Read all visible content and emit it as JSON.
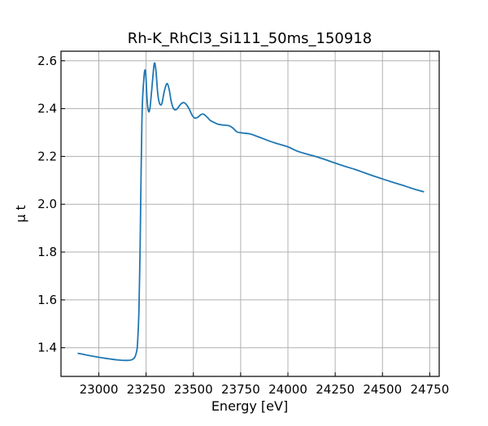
{
  "chart_data": {
    "type": "line",
    "title": "Rh-K_RhCl3_Si111_50ms_150918",
    "xlabel": "Energy [eV]",
    "ylabel": "μ t",
    "xlim": [
      22800,
      24800
    ],
    "ylim": [
      1.28,
      2.64
    ],
    "xticks": [
      23000,
      23250,
      23500,
      23750,
      24000,
      24250,
      24500,
      24750
    ],
    "xtick_labels": [
      "23000",
      "23250",
      "23500",
      "23750",
      "24000",
      "24250",
      "24500",
      "24750"
    ],
    "yticks": [
      1.4,
      1.6,
      1.8,
      2.0,
      2.2,
      2.4,
      2.6
    ],
    "ytick_labels": [
      "1.4",
      "1.6",
      "1.8",
      "2.0",
      "2.2",
      "2.4",
      "2.6"
    ],
    "grid": true,
    "line_color": "#1f77b4",
    "series": [
      {
        "points": [
          [
            22888,
            1.377
          ],
          [
            22950,
            1.367
          ],
          [
            23000,
            1.36
          ],
          [
            23050,
            1.354
          ],
          [
            23100,
            1.349
          ],
          [
            23150,
            1.347
          ],
          [
            23175,
            1.35
          ],
          [
            23190,
            1.36
          ],
          [
            23200,
            1.385
          ],
          [
            23205,
            1.42
          ],
          [
            23212,
            1.55
          ],
          [
            23218,
            1.8
          ],
          [
            23223,
            2.1
          ],
          [
            23228,
            2.35
          ],
          [
            23232,
            2.45
          ],
          [
            23236,
            2.5
          ],
          [
            23241,
            2.55
          ],
          [
            23246,
            2.56
          ],
          [
            23250,
            2.52
          ],
          [
            23255,
            2.44
          ],
          [
            23262,
            2.39
          ],
          [
            23270,
            2.4
          ],
          [
            23280,
            2.48
          ],
          [
            23290,
            2.57
          ],
          [
            23296,
            2.59
          ],
          [
            23303,
            2.55
          ],
          [
            23312,
            2.46
          ],
          [
            23322,
            2.42
          ],
          [
            23333,
            2.42
          ],
          [
            23343,
            2.46
          ],
          [
            23352,
            2.49
          ],
          [
            23362,
            2.505
          ],
          [
            23372,
            2.48
          ],
          [
            23383,
            2.43
          ],
          [
            23395,
            2.4
          ],
          [
            23407,
            2.395
          ],
          [
            23420,
            2.405
          ],
          [
            23435,
            2.42
          ],
          [
            23450,
            2.425
          ],
          [
            23465,
            2.415
          ],
          [
            23480,
            2.395
          ],
          [
            23495,
            2.37
          ],
          [
            23510,
            2.36
          ],
          [
            23525,
            2.365
          ],
          [
            23540,
            2.375
          ],
          [
            23553,
            2.377
          ],
          [
            23565,
            2.37
          ],
          [
            23578,
            2.36
          ],
          [
            23590,
            2.35
          ],
          [
            23610,
            2.342
          ],
          [
            23630,
            2.335
          ],
          [
            23660,
            2.331
          ],
          [
            23690,
            2.328
          ],
          [
            23710,
            2.318
          ],
          [
            23730,
            2.303
          ],
          [
            23760,
            2.298
          ],
          [
            23800,
            2.294
          ],
          [
            23850,
            2.28
          ],
          [
            23900,
            2.265
          ],
          [
            23950,
            2.252
          ],
          [
            24000,
            2.24
          ],
          [
            24050,
            2.222
          ],
          [
            24100,
            2.21
          ],
          [
            24150,
            2.199
          ],
          [
            24200,
            2.186
          ],
          [
            24250,
            2.172
          ],
          [
            24300,
            2.159
          ],
          [
            24350,
            2.147
          ],
          [
            24400,
            2.133
          ],
          [
            24450,
            2.119
          ],
          [
            24500,
            2.106
          ],
          [
            24550,
            2.093
          ],
          [
            24600,
            2.081
          ],
          [
            24650,
            2.068
          ],
          [
            24700,
            2.056
          ],
          [
            24720,
            2.052
          ]
        ]
      }
    ]
  }
}
